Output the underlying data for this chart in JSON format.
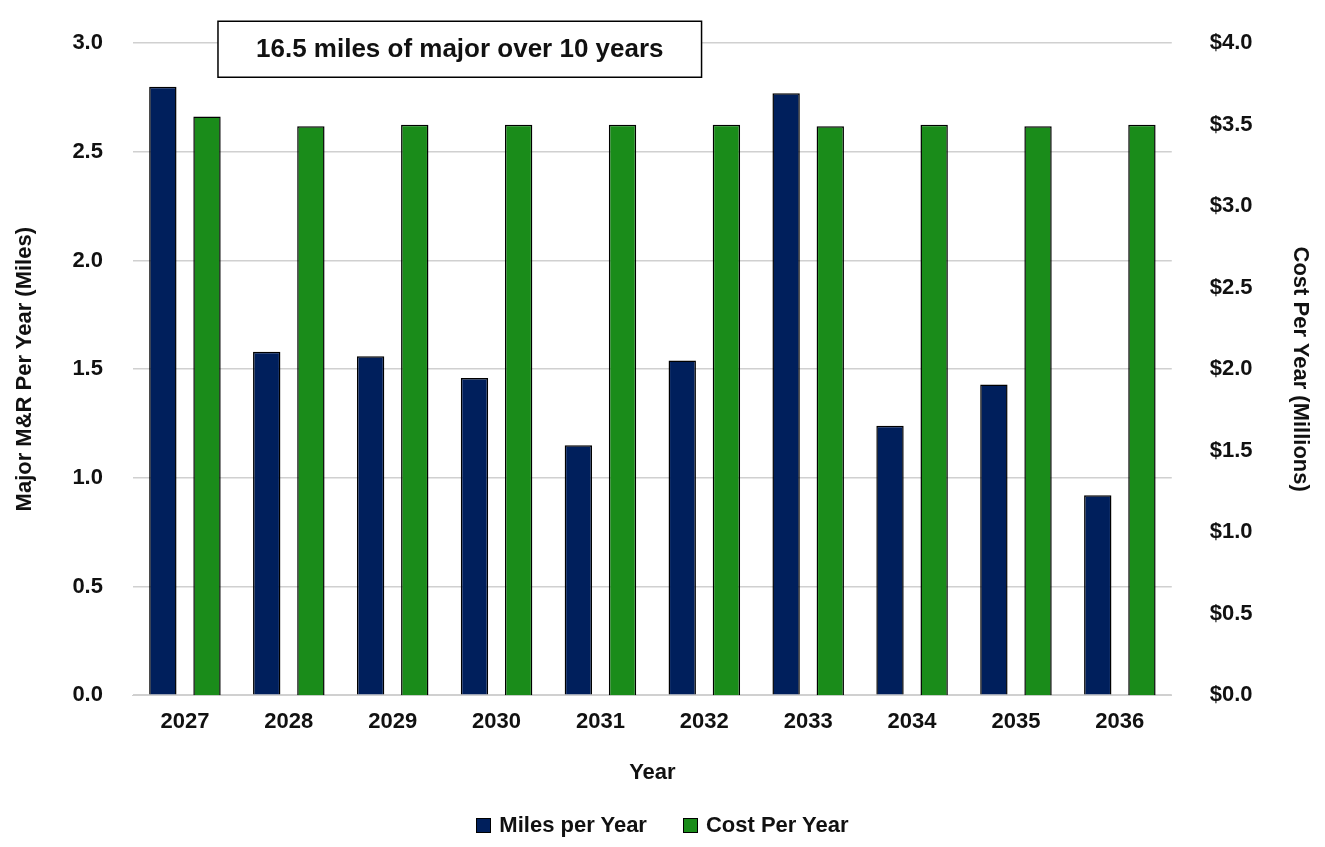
{
  "chart_data": {
    "type": "bar",
    "xlabel": "Year",
    "ylabel": "Major M&R Per Year (Miles)",
    "y2label": "Cost Per Year (Millions)",
    "categories": [
      "2027",
      "2028",
      "2029",
      "2030",
      "2031",
      "2032",
      "2033",
      "2034",
      "2035",
      "2036"
    ],
    "series": [
      {
        "name": "Miles per Year",
        "color": "#001f5c",
        "values": [
          2.8,
          1.58,
          1.56,
          1.46,
          1.15,
          1.54,
          2.77,
          1.24,
          1.43,
          0.92
        ]
      },
      {
        "name": "Cost Per Year",
        "color": "#1a8c1a",
        "axis": "y2",
        "values": [
          3.55,
          3.49,
          3.5,
          3.5,
          3.5,
          3.5,
          3.49,
          3.5,
          3.49,
          3.5
        ]
      }
    ],
    "ylim": [
      0,
      3
    ],
    "yticks": [
      {
        "value": 0,
        "label": "0.0"
      },
      {
        "value": 0.5,
        "label": "0.5"
      },
      {
        "value": 1,
        "label": "1.0"
      },
      {
        "value": 1.5,
        "label": "1.5"
      },
      {
        "value": 2,
        "label": "2.0"
      },
      {
        "value": 2.5,
        "label": "2.5"
      },
      {
        "value": 3,
        "label": "3.0"
      }
    ],
    "y2lim": [
      0,
      4
    ],
    "y2ticks": [
      {
        "value": 0,
        "label": "$0.0"
      },
      {
        "value": 0.5,
        "label": "$0.5"
      },
      {
        "value": 1,
        "label": "$1.0"
      },
      {
        "value": 1.5,
        "label": "$1.5"
      },
      {
        "value": 2,
        "label": "$2.0"
      },
      {
        "value": 2.5,
        "label": "$2.5"
      },
      {
        "value": 3,
        "label": "$3.0"
      },
      {
        "value": 3.5,
        "label": "$3.5"
      },
      {
        "value": 4,
        "label": "$4.0"
      }
    ],
    "annotations": [
      "16.5 miles of major over 10 years"
    ],
    "grid": "y",
    "legend": "bottom"
  }
}
